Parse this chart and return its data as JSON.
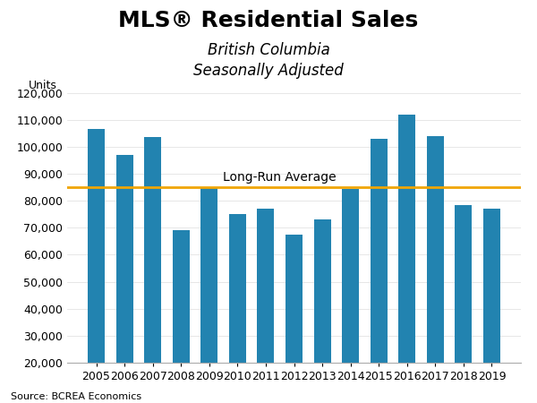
{
  "title": "MLS® Residential Sales",
  "subtitle1": "British Columbia",
  "subtitle2": "Seasonally Adjusted",
  "ylabel": "Units",
  "source": "Source: BCREA Economics",
  "years": [
    2005,
    2006,
    2007,
    2008,
    2009,
    2010,
    2011,
    2012,
    2013,
    2014,
    2015,
    2016,
    2017,
    2018,
    2019
  ],
  "values": [
    106500,
    97000,
    103500,
    69000,
    85000,
    75000,
    77000,
    67500,
    73000,
    84500,
    103000,
    112000,
    104000,
    78500,
    77000
  ],
  "bar_color": "#2283b0",
  "long_run_avg": 85000,
  "long_run_color": "#f0a500",
  "long_run_label": "Long-Run Average",
  "ylim_min": 20000,
  "ylim_max": 120000,
  "ytick_step": 10000,
  "background_color": "#ffffff",
  "title_fontsize": 18,
  "subtitle_fontsize": 12,
  "axis_label_fontsize": 9,
  "tick_fontsize": 9,
  "source_fontsize": 8,
  "long_run_label_fontsize": 10,
  "bar_width": 0.6
}
